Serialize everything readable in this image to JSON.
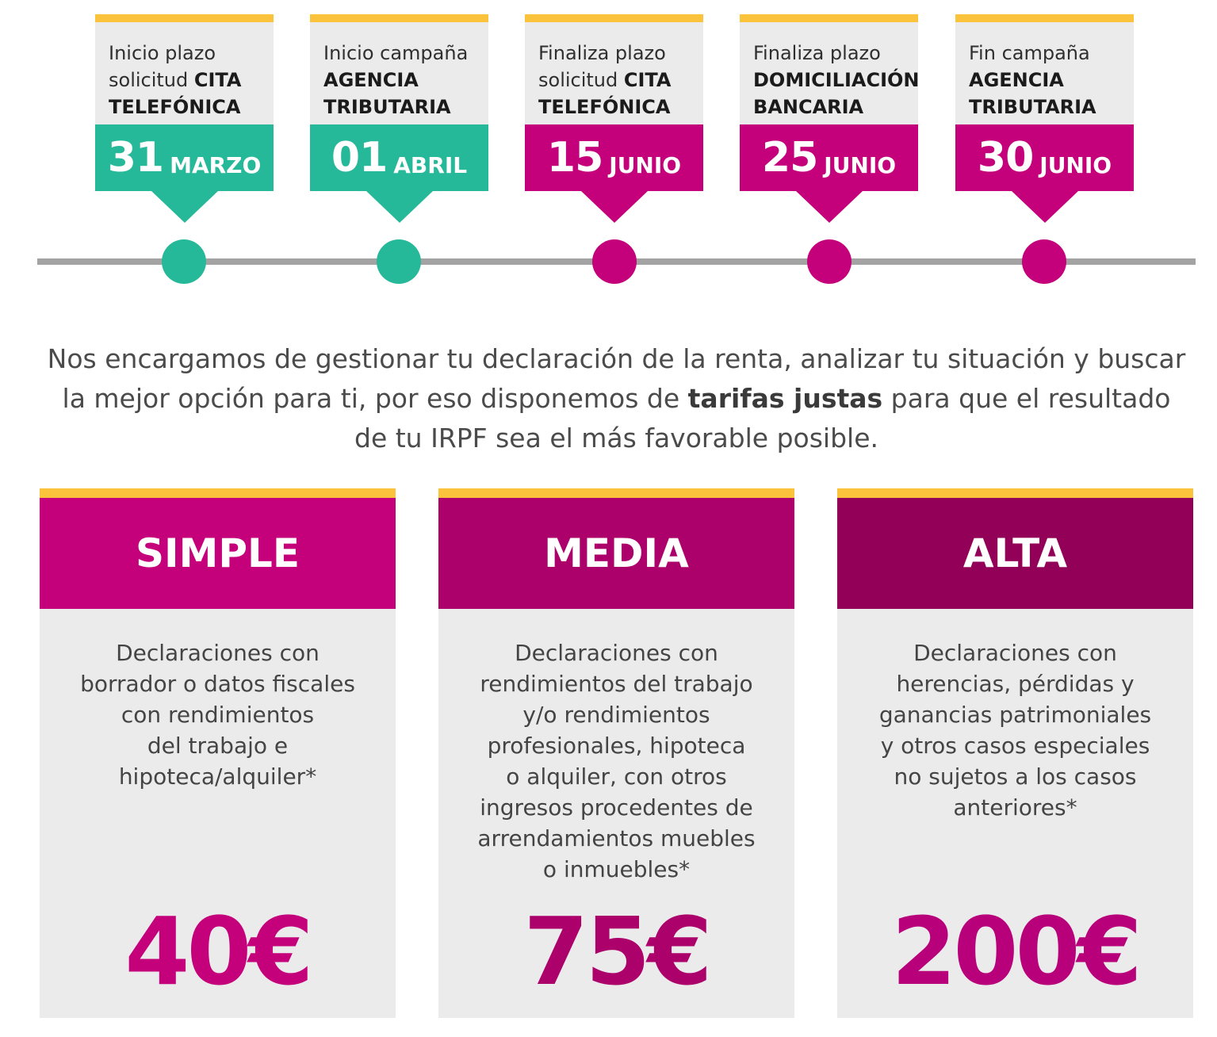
{
  "timeline": [
    {
      "lines": [
        {
          "text": "Inicio plazo",
          "bold": ""
        },
        {
          "text": "solicitud ",
          "bold": "CITA"
        },
        {
          "text": "",
          "bold": "TELEFÓNICA"
        }
      ],
      "day": "31",
      "month": "MARZO",
      "color": "#26b999"
    },
    {
      "lines": [
        {
          "text": "Inicio campaña",
          "bold": ""
        },
        {
          "text": "",
          "bold": "AGENCIA"
        },
        {
          "text": "",
          "bold": "TRIBUTARIA"
        }
      ],
      "day": "01",
      "month": "ABRIL",
      "color": "#26b999"
    },
    {
      "lines": [
        {
          "text": "Finaliza plazo",
          "bold": ""
        },
        {
          "text": "solicitud ",
          "bold": "CITA"
        },
        {
          "text": "",
          "bold": "TELEFÓNICA"
        }
      ],
      "day": "15",
      "month": "JUNIO",
      "color": "#c4007a"
    },
    {
      "lines": [
        {
          "text": "Finaliza plazo",
          "bold": ""
        },
        {
          "text": "",
          "bold": "DOMICILIACIÓN"
        },
        {
          "text": "",
          "bold": "BANCARIA"
        }
      ],
      "day": "25",
      "month": "JUNIO",
      "color": "#c4007a"
    },
    {
      "lines": [
        {
          "text": "Fin campaña",
          "bold": ""
        },
        {
          "text": "",
          "bold": "AGENCIA"
        },
        {
          "text": "",
          "bold": "TRIBUTARIA"
        }
      ],
      "day": "30",
      "month": "JUNIO",
      "color": "#c4007a"
    }
  ],
  "intro": {
    "line1": "Nos encargamos de gestionar tu declaración de la renta, analizar tu situación y buscar",
    "line2_pre": "la mejor opción para ti, por eso disponemos de ",
    "line2_bold": "tarifas justas",
    "line2_post": " para que el resultado",
    "line3": "de tu IRPF sea el más favorable posible."
  },
  "tariffs": [
    {
      "name": "SIMPLE",
      "header_color": "#c4007a",
      "price_color": "#c4007a",
      "description": [
        "Declaraciones con",
        "borrador o datos fiscales",
        "con rendimientos",
        "del trabajo e",
        "hipoteca/alquiler*"
      ],
      "price": "40€"
    },
    {
      "name": "MEDIA",
      "header_color": "#ac006b",
      "price_color": "#ac006b",
      "description": [
        "Declaraciones con",
        "rendimientos del trabajo",
        "y/o rendimientos",
        "profesionales, hipoteca",
        "o alquiler, con otros",
        "ingresos procedentes de",
        "arrendamientos muebles",
        "o inmuebles*"
      ],
      "price": "75€"
    },
    {
      "name": "ALTA",
      "header_color": "#930058",
      "price_color": "#b8007a",
      "description": [
        "Declaraciones con",
        "herencias, pérdidas y",
        "ganancias patrimoniales",
        "y otros casos especiales",
        "no sujetos a los casos",
        "anteriores*"
      ],
      "price": "200€"
    }
  ]
}
